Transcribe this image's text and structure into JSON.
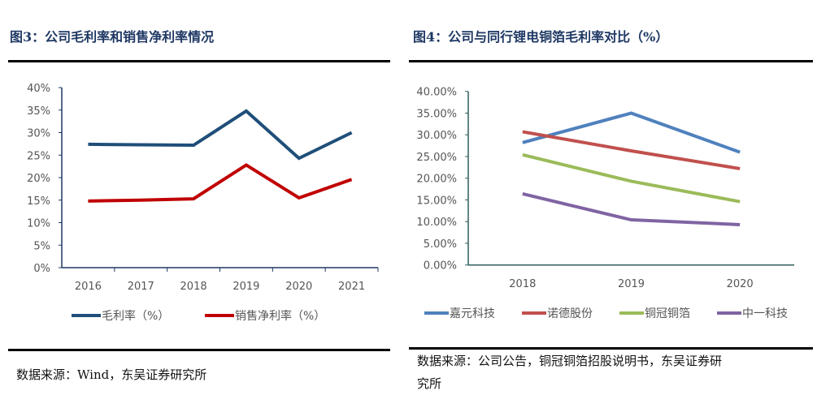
{
  "chart_data": [
    {
      "type": "line",
      "title": "图3：公司毛利率和销售净利率情况",
      "categories": [
        "2016",
        "2017",
        "2018",
        "2019",
        "2020",
        "2021"
      ],
      "ylim": [
        0,
        40
      ],
      "yticks": [
        "0%",
        "5%",
        "10%",
        "15%",
        "20%",
        "25%",
        "30%",
        "35%",
        "40%"
      ],
      "grid": false,
      "legend": "bottom",
      "series": [
        {
          "name": "毛利率（%）",
          "color": "#1f4e79",
          "values": [
            27.4,
            27.3,
            27.2,
            34.8,
            24.3,
            30.0
          ]
        },
        {
          "name": "销售净利率（%）",
          "color": "#c00000",
          "values": [
            14.8,
            15.0,
            15.3,
            22.8,
            15.5,
            19.6
          ]
        }
      ],
      "source": "数据来源：Wind，东吴证券研究所"
    },
    {
      "type": "line",
      "title": "图4：公司与同行锂电铜箔毛利率对比（%）",
      "categories": [
        "2018",
        "2019",
        "2020"
      ],
      "ylim": [
        0,
        40
      ],
      "yticks": [
        "0.00%",
        "5.00%",
        "10.00%",
        "15.00%",
        "20.00%",
        "25.00%",
        "30.00%",
        "35.00%",
        "40.00%"
      ],
      "grid": false,
      "legend": "bottom",
      "series": [
        {
          "name": "嘉元科技",
          "color": "#4f81bd",
          "values": [
            28.2,
            35.0,
            26.0
          ]
        },
        {
          "name": "诺德股份",
          "color": "#c0504d",
          "values": [
            30.7,
            26.3,
            22.2
          ]
        },
        {
          "name": "铜冠铜箔",
          "color": "#9bbb59",
          "values": [
            25.4,
            19.3,
            14.6
          ]
        },
        {
          "name": "中一科技",
          "color": "#8064a2",
          "values": [
            16.4,
            10.4,
            9.3
          ]
        }
      ],
      "source_line1": "数据来源：公司公告，铜冠铜箔招股说明书，东吴证券研",
      "source_line2": "究所"
    }
  ]
}
